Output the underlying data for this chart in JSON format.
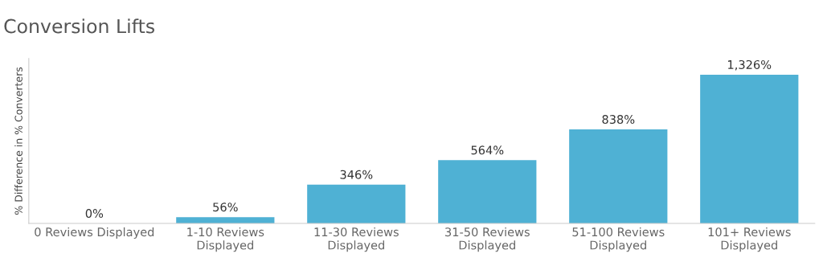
{
  "chart_data": {
    "type": "bar",
    "title": "Conversion Lifts",
    "ylabel": "% Difference in % Converters",
    "categories": [
      "0 Reviews Displayed",
      "1-10 Reviews\nDisplayed",
      "11-30 Reviews\nDisplayed",
      "31-50 Reviews\nDisplayed",
      "51-100 Reviews\nDisplayed",
      "101+ Reviews\nDisplayed"
    ],
    "values": [
      0,
      56,
      346,
      564,
      838,
      1326
    ],
    "value_labels": [
      "0%",
      "56%",
      "346%",
      "564%",
      "838%",
      "1,326%"
    ],
    "color": "#4fb1d4",
    "ylim": [
      0,
      1470
    ],
    "tick_labels": "x",
    "grid": false,
    "legend": false
  }
}
